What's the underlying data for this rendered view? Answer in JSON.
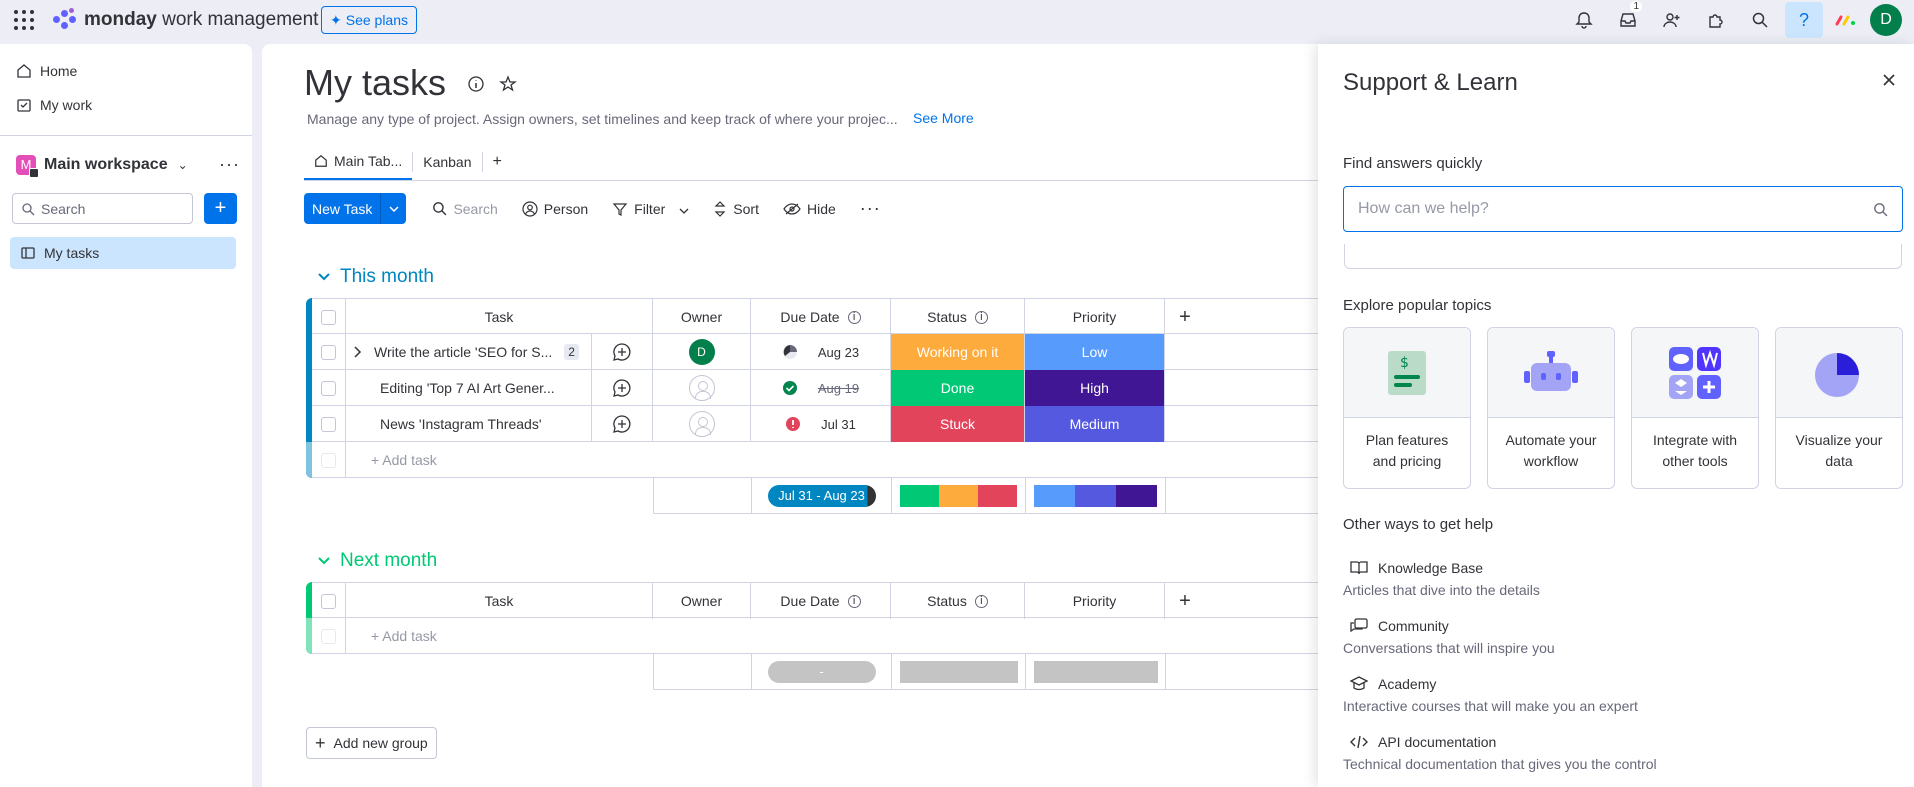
{
  "topbar": {
    "brand_bold": "monday",
    "brand_rest": " work management",
    "see_plans": "See plans",
    "inbox_badge": "1",
    "avatar": "D"
  },
  "sidebar": {
    "home": "Home",
    "my_work": "My work",
    "workspace_initial": "M",
    "workspace": "Main workspace",
    "search_placeholder": "Search",
    "my_tasks": "My tasks"
  },
  "page": {
    "title": "My tasks",
    "description": "Manage any type of project. Assign owners, set timelines and keep track of where your projec...",
    "see_more": "See More",
    "tabs": [
      "Main Tab...",
      "Kanban"
    ],
    "toolbar": {
      "new_task": "New Task",
      "search": "Search",
      "person": "Person",
      "filter": "Filter",
      "sort": "Sort",
      "hide": "Hide"
    }
  },
  "columns": [
    "Task",
    "Owner",
    "Due Date",
    "Status",
    "Priority"
  ],
  "groups": [
    {
      "name": "This month",
      "color": "#0086c0",
      "rows": [
        {
          "task": "Write the article 'SEO for S...",
          "subitems": "2",
          "owner": "D",
          "due": "Aug 23",
          "status": "Working on it",
          "status_color": "#fdab3d",
          "priority": "Low",
          "priority_color": "#579bfc"
        },
        {
          "task": "Editing 'Top 7 AI Art Gener...",
          "owner": "",
          "due": "Aug 19",
          "status": "Done",
          "status_color": "#00c875",
          "priority": "High",
          "priority_color": "#401694"
        },
        {
          "task": "News 'Instagram Threads'",
          "owner": "",
          "due": "Jul 31",
          "status": "Stuck",
          "status_color": "#e2445c",
          "priority": "Medium",
          "priority_color": "#5559df"
        }
      ],
      "add_task": "+ Add task",
      "summary_date": "Jul 31 - Aug 23"
    },
    {
      "name": "Next month",
      "color": "#00c875",
      "rows": [],
      "add_task": "+ Add task",
      "summary_date": "-"
    }
  ],
  "add_group": "Add new group",
  "panel": {
    "title": "Support & Learn",
    "find_answers": "Find answers quickly",
    "search_placeholder": "How can we help?",
    "explore": "Explore popular topics",
    "topics": [
      {
        "line1": "Plan features",
        "line2": "and pricing"
      },
      {
        "line1": "Automate your",
        "line2": "workflow"
      },
      {
        "line1": "Integrate with",
        "line2": "other tools"
      },
      {
        "line1": "Visualize your",
        "line2": "data"
      }
    ],
    "other_ways": "Other ways to get help",
    "other": [
      {
        "title": "Knowledge Base",
        "desc": "Articles that dive into the details",
        "icon": "book-icon"
      },
      {
        "title": "Community",
        "desc": "Conversations that will inspire you",
        "icon": "chat-icon"
      },
      {
        "title": "Academy",
        "desc": "Interactive courses that will make you an expert",
        "icon": "graduation-icon"
      },
      {
        "title": "API documentation",
        "desc": "Technical documentation that gives you the control",
        "icon": "code-icon"
      }
    ]
  }
}
